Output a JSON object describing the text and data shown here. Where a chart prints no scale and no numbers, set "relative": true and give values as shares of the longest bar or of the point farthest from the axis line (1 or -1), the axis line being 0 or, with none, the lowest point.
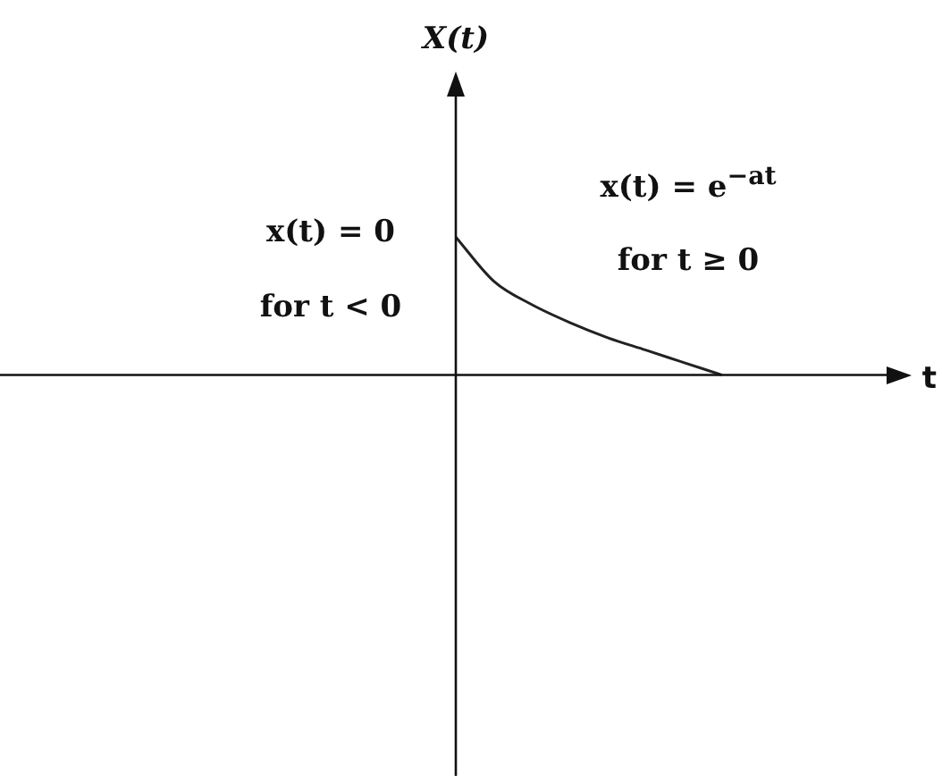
{
  "chart_data": {
    "type": "line",
    "relative": true,
    "xlabel": "t",
    "color": "#222222",
    "categories": [
      null,
      null,
      null,
      null,
      null,
      null,
      null,
      null,
      null,
      null,
      null,
      null,
      null,
      null,
      null,
      null,
      null,
      null,
      null,
      null,
      null,
      null,
      null,
      null,
      null
    ],
    "values": [
      null,
      null,
      null,
      null,
      null,
      null,
      null,
      null,
      null,
      null,
      null,
      null,
      1,
      0.68,
      0.51,
      0.38,
      0.27,
      0.18,
      0.09,
      0,
      null,
      null,
      null,
      null,
      null
    ],
    "annotations": [
      "X(t)",
      "x(t) = 0",
      "for t < 0",
      "x(t) = e$^{−at}$",
      "for t ≥ 0"
    ]
  }
}
